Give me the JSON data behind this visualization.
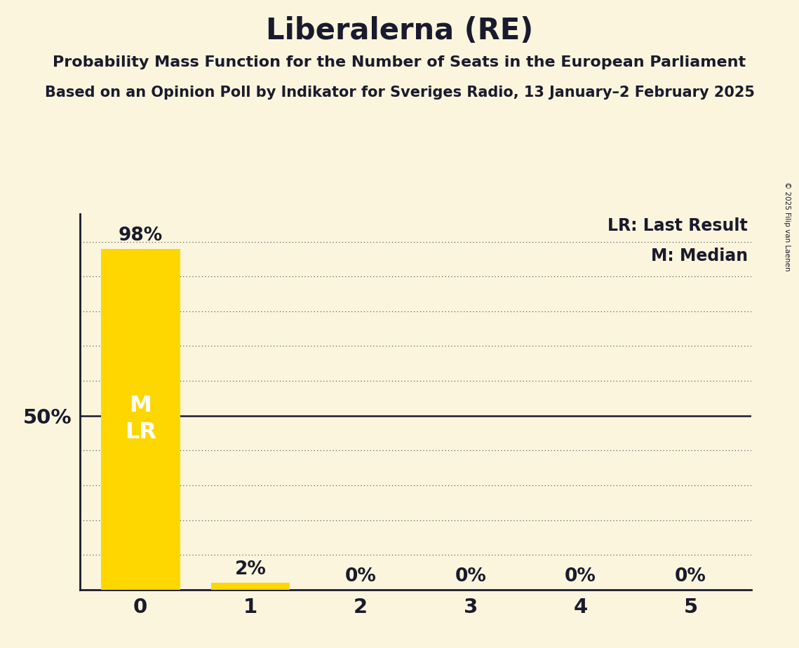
{
  "title": "Liberalerna (RE)",
  "subtitle1": "Probability Mass Function for the Number of Seats in the European Parliament",
  "subtitle2": "Based on an Opinion Poll by Indikator for Sveriges Radio, 13 January–2 February 2025",
  "copyright": "© 2025 Filip van Laenen",
  "seats": [
    0,
    1,
    2,
    3,
    4,
    5
  ],
  "probabilities": [
    0.98,
    0.02,
    0.0,
    0.0,
    0.0,
    0.0
  ],
  "bar_color": "#FFD700",
  "background_color": "#FAF5DC",
  "text_color": "#1a1a2e",
  "median": 0,
  "last_result": 0,
  "ylim": [
    0,
    1.08
  ],
  "yticks": [
    0.0,
    0.1,
    0.2,
    0.3,
    0.4,
    0.5,
    0.6,
    0.7,
    0.8,
    0.9,
    1.0
  ],
  "solid_line_y": 0.5,
  "bar_width": 0.72,
  "xlim": [
    -0.55,
    5.55
  ]
}
